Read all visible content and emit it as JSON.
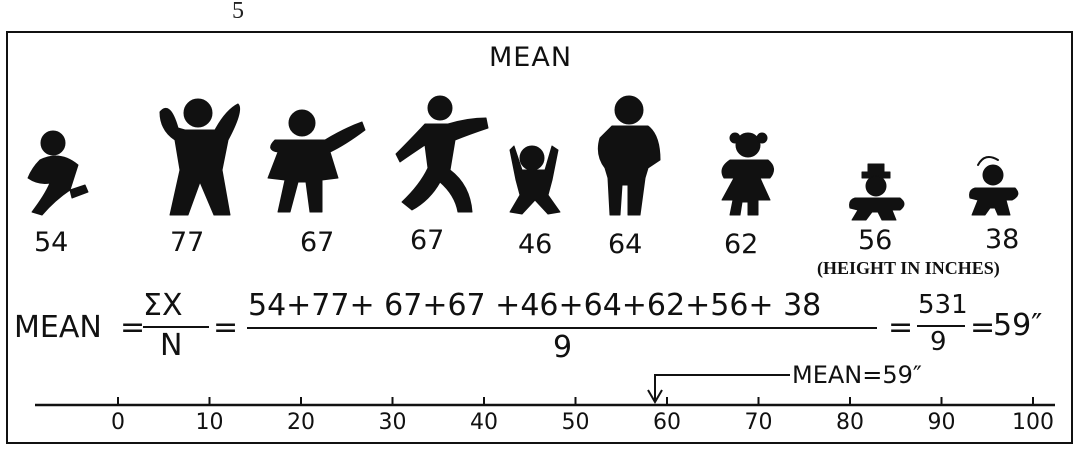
{
  "page_number": "5",
  "title": "MEAN",
  "heights": [
    "54",
    "77",
    "67",
    "67",
    "46",
    "64",
    "62",
    "56",
    "38"
  ],
  "unit_note": "(HEIGHT IN INCHES)",
  "formula": {
    "lhs": "MEAN",
    "eq": "=",
    "symbol_num": "ΣX",
    "symbol_den": "N",
    "sum_num": "54+77+ 67+67 +46+64+62+56+ 38",
    "sum_den": "9",
    "total_num": "531",
    "total_den": "9",
    "result": "59″"
  },
  "axis_ticks": [
    "0",
    "10",
    "20",
    "30",
    "40",
    "50",
    "60",
    "70",
    "80",
    "90",
    "100"
  ],
  "mean_marker": {
    "label": "MEAN=59″",
    "value": 59
  }
}
